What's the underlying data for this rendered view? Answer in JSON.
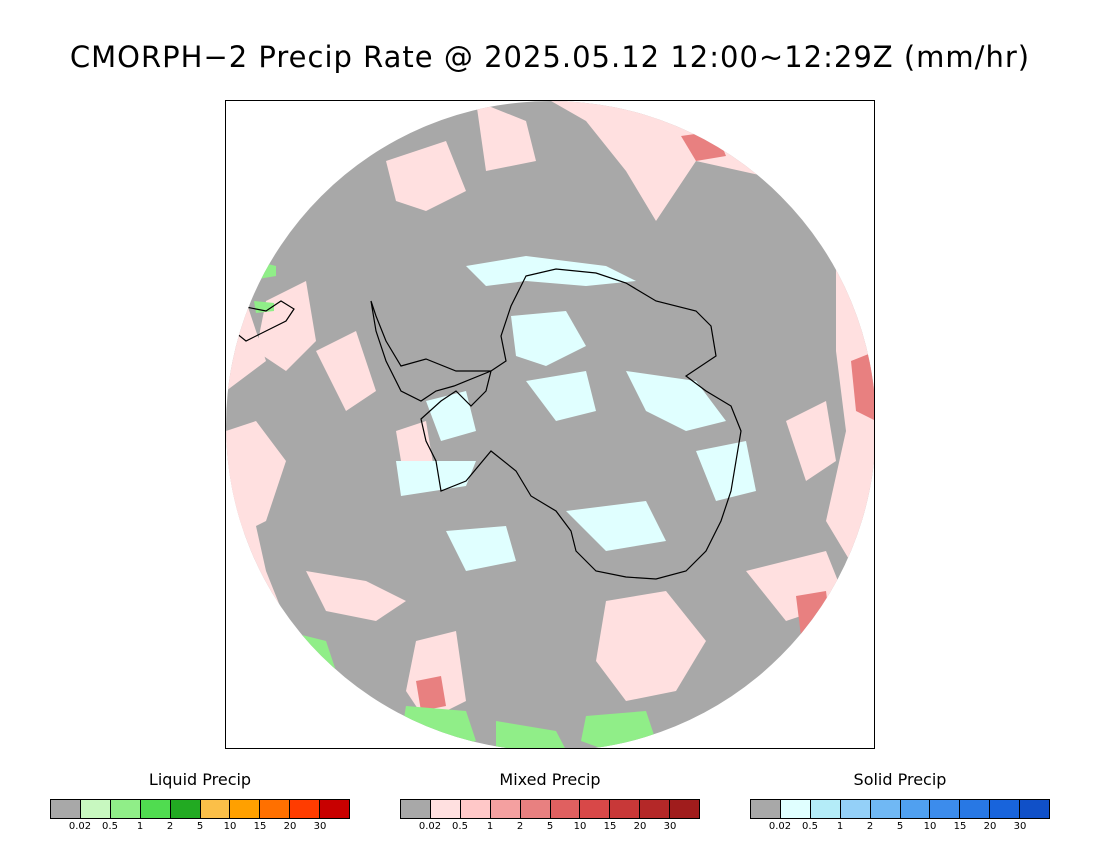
{
  "title": "CMORPH−2 Precip Rate @ 2025.05.12 12:00~12:29Z (mm/hr)",
  "map": {
    "projection": "south-polar-stereographic",
    "background_color": "#a8a8a8",
    "coastline_color": "#000000"
  },
  "legends": [
    {
      "id": "liquid",
      "title": "Liquid Precip",
      "colors": [
        "#a8a8a8",
        "#c8f8c0",
        "#90ee88",
        "#50dc50",
        "#22aa22",
        "#fbbf48",
        "#ffa000",
        "#ff7000",
        "#ff3c00",
        "#c80000"
      ],
      "tick_labels": [
        "0.02",
        "0.5",
        "1",
        "2",
        "5",
        "10",
        "15",
        "20",
        "30"
      ]
    },
    {
      "id": "mixed",
      "title": "Mixed Precip",
      "colors": [
        "#a8a8a8",
        "#ffe0e0",
        "#ffc8c8",
        "#f4a0a0",
        "#e88080",
        "#e06060",
        "#d84848",
        "#c83838",
        "#b42828",
        "#a01c1c"
      ],
      "tick_labels": [
        "0.02",
        "0.5",
        "1",
        "2",
        "5",
        "10",
        "15",
        "20",
        "30"
      ]
    },
    {
      "id": "solid",
      "title": "Solid Precip",
      "colors": [
        "#a8a8a8",
        "#e0ffff",
        "#b4ecf8",
        "#94d0f8",
        "#70b8f4",
        "#50a0f0",
        "#3c8cec",
        "#2878e4",
        "#1864dc",
        "#1050c8"
      ],
      "tick_labels": [
        "0.02",
        "0.5",
        "1",
        "2",
        "5",
        "10",
        "15",
        "20",
        "30"
      ]
    }
  ]
}
